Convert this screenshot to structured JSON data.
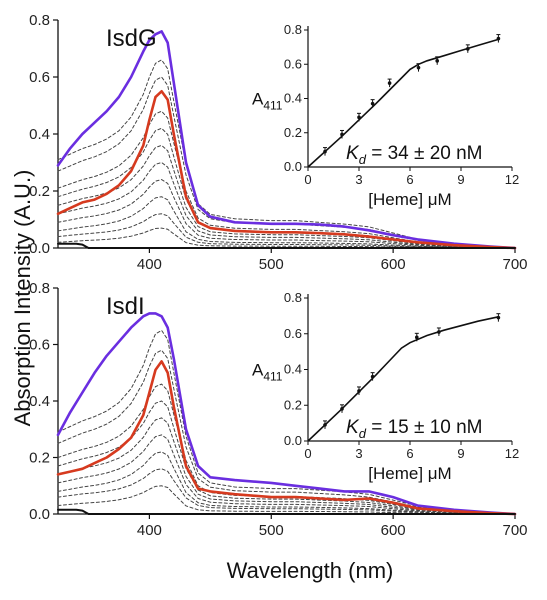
{
  "figure": {
    "ylabel": "Absorption Intensity (A.U.)",
    "xlabel": "Wavelength (nm)"
  },
  "chart_data": [
    {
      "type": "line",
      "title": "IsdG",
      "xlim": [
        325,
        700
      ],
      "ylim": [
        0,
        0.8
      ],
      "xticks": [
        400,
        500,
        600,
        700
      ],
      "yticks": [
        0.0,
        0.2,
        0.4,
        0.6,
        0.8
      ],
      "xtick_labels": [
        "400",
        "500",
        "600",
        "700"
      ],
      "ytick_labels": [
        "0.0",
        "0.2",
        "0.4",
        "0.6",
        "0.8"
      ],
      "series": [
        {
          "color": "#6a2ee0",
          "style": "solid",
          "x": [
            325,
            335,
            345,
            355,
            365,
            375,
            385,
            395,
            400,
            405,
            410,
            415,
            420,
            430,
            440,
            450,
            470,
            500,
            520,
            540,
            560,
            580,
            600,
            620,
            650,
            680,
            700
          ],
          "y": [
            0.29,
            0.35,
            0.4,
            0.44,
            0.48,
            0.53,
            0.6,
            0.69,
            0.73,
            0.75,
            0.76,
            0.72,
            0.58,
            0.3,
            0.15,
            0.11,
            0.09,
            0.085,
            0.085,
            0.082,
            0.075,
            0.062,
            0.045,
            0.03,
            0.015,
            0.005,
            0.0
          ]
        },
        {
          "color": "#d63a1f",
          "style": "solid",
          "x": [
            325,
            335,
            345,
            355,
            365,
            375,
            385,
            395,
            400,
            405,
            410,
            415,
            420,
            430,
            440,
            450,
            470,
            500,
            520,
            540,
            560,
            580,
            600,
            620,
            650,
            680,
            700
          ],
          "y": [
            0.12,
            0.14,
            0.16,
            0.17,
            0.19,
            0.22,
            0.27,
            0.36,
            0.45,
            0.53,
            0.55,
            0.52,
            0.4,
            0.18,
            0.09,
            0.07,
            0.06,
            0.055,
            0.055,
            0.052,
            0.048,
            0.04,
            0.03,
            0.02,
            0.01,
            0.003,
            0.0
          ]
        },
        {
          "color": "#111111",
          "style": "solid",
          "x": [
            325,
            340,
            345,
            350,
            400,
            500,
            600,
            700
          ],
          "y": [
            0.015,
            0.015,
            0.012,
            0.0,
            0.0,
            0.0,
            0.0,
            0.0
          ]
        },
        {
          "color": "#444444",
          "style": "dashed",
          "peak": 0.66,
          "base": 0.31
        },
        {
          "color": "#444444",
          "style": "dashed",
          "peak": 0.6,
          "base": 0.27
        },
        {
          "color": "#444444",
          "style": "dashed",
          "peak": 0.48,
          "base": 0.21
        },
        {
          "color": "#444444",
          "style": "dashed",
          "peak": 0.42,
          "base": 0.18
        },
        {
          "color": "#444444",
          "style": "dashed",
          "peak": 0.36,
          "base": 0.15
        },
        {
          "color": "#444444",
          "style": "dashed",
          "peak": 0.3,
          "base": 0.12
        },
        {
          "color": "#444444",
          "style": "dashed",
          "peak": 0.24,
          "base": 0.09
        },
        {
          "color": "#444444",
          "style": "dashed",
          "peak": 0.18,
          "base": 0.06
        },
        {
          "color": "#444444",
          "style": "dashed",
          "peak": 0.12,
          "base": 0.04
        },
        {
          "color": "#444444",
          "style": "dashed",
          "peak": 0.07,
          "base": 0.02
        }
      ],
      "inset": {
        "type": "scatter",
        "ylabel_main": "A",
        "ylabel_sub": "411",
        "xlabel": "[Heme] μM",
        "xlim": [
          0,
          12
        ],
        "ylim": [
          0,
          0.8
        ],
        "xticks": [
          0,
          3,
          6,
          9,
          12
        ],
        "yticks": [
          0.0,
          0.2,
          0.4,
          0.6,
          0.8
        ],
        "xtick_labels": [
          "0",
          "3",
          "6",
          "9",
          "12"
        ],
        "ytick_labels": [
          "0.0",
          "0.2",
          "0.4",
          "0.6",
          "0.8"
        ],
        "points_x": [
          1,
          2,
          3,
          3.8,
          4.8,
          6.5,
          7.6,
          9.4,
          11.2
        ],
        "points_y": [
          0.09,
          0.19,
          0.29,
          0.37,
          0.49,
          0.58,
          0.62,
          0.69,
          0.75
        ],
        "fit_x": [
          0,
          2,
          4,
          5,
          5.5,
          6,
          6.5,
          7,
          8,
          9,
          10,
          11.2
        ],
        "fit_y": [
          0,
          0.18,
          0.37,
          0.47,
          0.52,
          0.57,
          0.6,
          0.62,
          0.65,
          0.68,
          0.71,
          0.745
        ],
        "kd_label": "K",
        "kd_sub": "d",
        "kd_value": " = 34 ± 20 nM"
      }
    },
    {
      "type": "line",
      "title": "IsdI",
      "xlim": [
        325,
        700
      ],
      "ylim": [
        0,
        0.8
      ],
      "xticks": [
        400,
        500,
        600,
        700
      ],
      "yticks": [
        0.0,
        0.2,
        0.4,
        0.6,
        0.8
      ],
      "xtick_labels": [
        "400",
        "500",
        "600",
        "700"
      ],
      "ytick_labels": [
        "0.0",
        "0.2",
        "0.4",
        "0.6",
        "0.8"
      ],
      "series": [
        {
          "color": "#6a2ee0",
          "style": "solid",
          "x": [
            325,
            335,
            345,
            355,
            365,
            375,
            385,
            395,
            400,
            405,
            410,
            415,
            420,
            430,
            440,
            450,
            470,
            500,
            520,
            540,
            560,
            580,
            600,
            620,
            650,
            680,
            700
          ],
          "y": [
            0.28,
            0.36,
            0.43,
            0.5,
            0.56,
            0.61,
            0.66,
            0.7,
            0.71,
            0.71,
            0.7,
            0.66,
            0.55,
            0.3,
            0.17,
            0.13,
            0.12,
            0.11,
            0.1,
            0.09,
            0.08,
            0.08,
            0.06,
            0.03,
            0.015,
            0.005,
            0.0
          ]
        },
        {
          "color": "#d63a1f",
          "style": "solid",
          "x": [
            325,
            335,
            345,
            355,
            365,
            375,
            385,
            395,
            400,
            405,
            410,
            415,
            420,
            430,
            440,
            450,
            470,
            500,
            520,
            540,
            560,
            580,
            600,
            620,
            650,
            680,
            700
          ],
          "y": [
            0.14,
            0.15,
            0.16,
            0.18,
            0.2,
            0.23,
            0.27,
            0.35,
            0.43,
            0.51,
            0.54,
            0.5,
            0.38,
            0.17,
            0.09,
            0.08,
            0.07,
            0.06,
            0.06,
            0.055,
            0.05,
            0.055,
            0.04,
            0.02,
            0.01,
            0.003,
            0.0
          ]
        },
        {
          "color": "#111111",
          "style": "solid",
          "x": [
            325,
            340,
            345,
            350,
            400,
            500,
            600,
            700
          ],
          "y": [
            0.015,
            0.015,
            0.012,
            0.0,
            0.0,
            0.0,
            0.0,
            0.0
          ]
        },
        {
          "color": "#444444",
          "style": "dashed",
          "peak": 0.65,
          "base": 0.29
        },
        {
          "color": "#444444",
          "style": "dashed",
          "peak": 0.58,
          "base": 0.25
        },
        {
          "color": "#444444",
          "style": "dashed",
          "peak": 0.46,
          "base": 0.2
        },
        {
          "color": "#444444",
          "style": "dashed",
          "peak": 0.4,
          "base": 0.17
        },
        {
          "color": "#444444",
          "style": "dashed",
          "peak": 0.34,
          "base": 0.14
        },
        {
          "color": "#444444",
          "style": "dashed",
          "peak": 0.28,
          "base": 0.11
        },
        {
          "color": "#444444",
          "style": "dashed",
          "peak": 0.22,
          "base": 0.08
        },
        {
          "color": "#444444",
          "style": "dashed",
          "peak": 0.16,
          "base": 0.06
        },
        {
          "color": "#444444",
          "style": "dashed",
          "peak": 0.1,
          "base": 0.03
        }
      ],
      "inset": {
        "type": "scatter",
        "ylabel_main": "A",
        "ylabel_sub": "411",
        "xlabel": "[Heme] μM",
        "xlim": [
          0,
          12
        ],
        "ylim": [
          0,
          0.8
        ],
        "xticks": [
          0,
          3,
          6,
          9,
          12
        ],
        "yticks": [
          0.0,
          0.2,
          0.4,
          0.6,
          0.8
        ],
        "xtick_labels": [
          "0",
          "3",
          "6",
          "9",
          "12"
        ],
        "ytick_labels": [
          "0.0",
          "0.2",
          "0.4",
          "0.6",
          "0.8"
        ],
        "points_x": [
          1,
          2,
          3,
          3.8,
          6.4,
          7.7,
          11.2
        ],
        "points_y": [
          0.09,
          0.18,
          0.28,
          0.36,
          0.58,
          0.61,
          0.69
        ],
        "fit_x": [
          0,
          2,
          4,
          5,
          5.5,
          6,
          7,
          8,
          9,
          10,
          11.2
        ],
        "fit_y": [
          0,
          0.18,
          0.37,
          0.47,
          0.52,
          0.55,
          0.59,
          0.62,
          0.645,
          0.67,
          0.695
        ],
        "kd_label": "K",
        "kd_sub": "d",
        "kd_value": " = 15 ± 10 nM"
      }
    }
  ]
}
